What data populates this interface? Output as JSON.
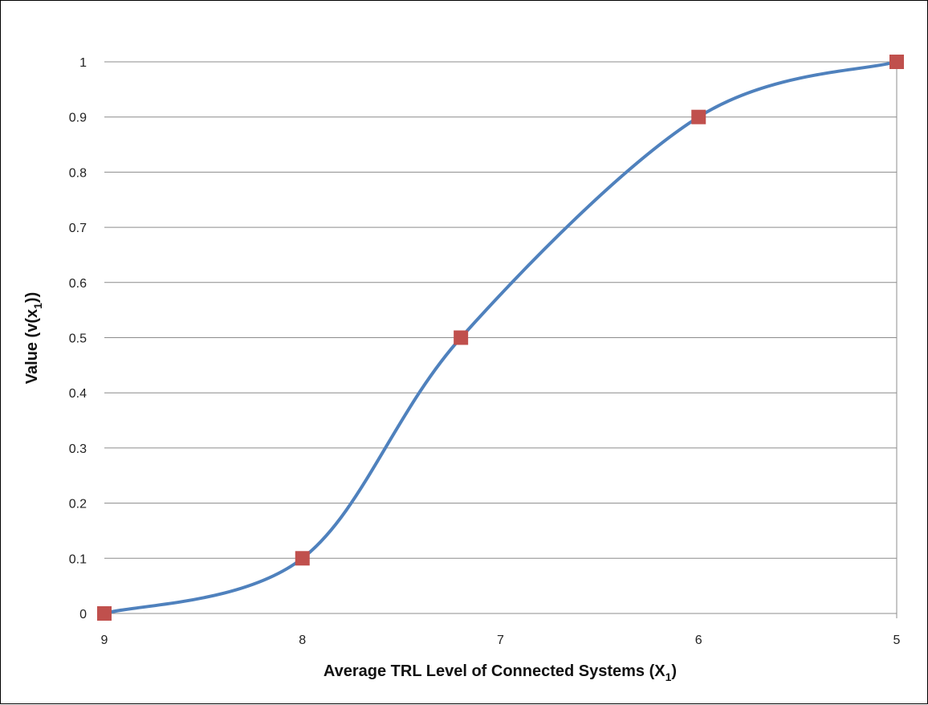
{
  "chart_data": {
    "type": "line",
    "title": "",
    "xlabel": {
      "main": "Average TRL Level of Connected Systems (X",
      "sub": "1",
      "end": ")"
    },
    "ylabel": {
      "main": "Value (v(x",
      "sub": "1",
      "end": "))"
    },
    "x_reversed": true,
    "xlim": [
      9,
      5
    ],
    "ylim": [
      0,
      1
    ],
    "x_ticks": [
      9,
      8,
      7,
      6,
      5
    ],
    "y_ticks": [
      0,
      0.1,
      0.2,
      0.3,
      0.4,
      0.5,
      0.6,
      0.7,
      0.8,
      0.9,
      1
    ],
    "y_tick_labels": [
      "0",
      "0.1",
      "0.2",
      "0.3",
      "0.4",
      "0.5",
      "0.6",
      "0.7",
      "0.8",
      "0.9",
      "1"
    ],
    "x_tick_labels": [
      "9",
      "8",
      "7",
      "6",
      "5"
    ],
    "grid": "horizontal",
    "legend": "none",
    "series": [
      {
        "line_color": "#4f81bd",
        "marker_color": "#c0504d",
        "marker": "square",
        "smooth": true,
        "points": [
          {
            "x": 9,
            "y": 0
          },
          {
            "x": 8,
            "y": 0.1
          },
          {
            "x": 7.2,
            "y": 0.5
          },
          {
            "x": 6,
            "y": 0.9
          },
          {
            "x": 5,
            "y": 1
          }
        ]
      }
    ]
  }
}
